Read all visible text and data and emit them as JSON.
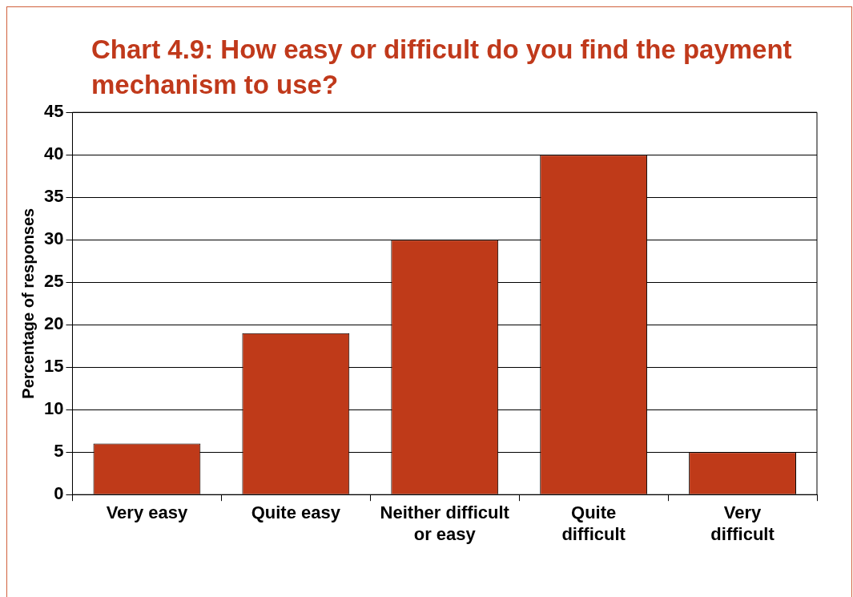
{
  "chart_data": {
    "type": "bar",
    "title": "Chart 4.9: How easy or difficult do you find the payment mechanism to use?",
    "ylabel": "Percentage of responses",
    "categories": [
      "Very easy",
      "Quite easy",
      "Neither difficult or easy",
      "Quite difficult",
      "Very difficult"
    ],
    "values": [
      6,
      19,
      30,
      40,
      5
    ],
    "color": "#bf3a19",
    "ylim": [
      0,
      45
    ],
    "yticks": [
      0,
      5,
      10,
      15,
      20,
      25,
      30,
      35,
      40,
      45
    ],
    "grid": "y"
  }
}
